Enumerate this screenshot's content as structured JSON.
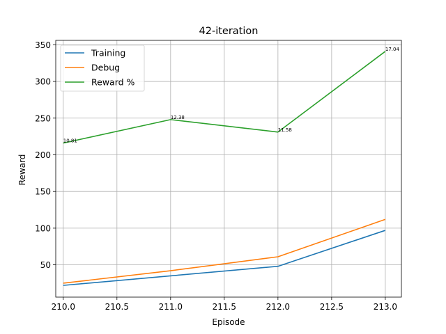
{
  "chart_data": {
    "type": "line",
    "title": "42-iteration",
    "xlabel": "Episode",
    "ylabel": "Reward",
    "x": [
      210.0,
      211.0,
      212.0,
      213.0
    ],
    "xlim": [
      209.93,
      213.15
    ],
    "ylim": [
      6,
      356
    ],
    "xticks": [
      210.0,
      210.5,
      211.0,
      211.5,
      212.0,
      212.5,
      213.0
    ],
    "xtick_labels": [
      "210.0",
      "210.5",
      "211.0",
      "211.5",
      "212.0",
      "212.5",
      "213.0"
    ],
    "yticks": [
      50,
      100,
      150,
      200,
      250,
      300,
      350
    ],
    "ytick_labels": [
      "50",
      "100",
      "150",
      "200",
      "250",
      "300",
      "350"
    ],
    "grid": true,
    "legend_position": "top-left",
    "series": [
      {
        "name": "Training",
        "color": "#1f77b4",
        "values": [
          22,
          35,
          48,
          97
        ]
      },
      {
        "name": "Debug",
        "color": "#ff7f0e",
        "values": [
          25,
          42,
          61,
          112
        ]
      },
      {
        "name": "Reward %",
        "color": "#2ca02c",
        "values": [
          216,
          248,
          231,
          341
        ],
        "point_labels": [
          "10.81",
          "12.38",
          "11.58",
          "17.04"
        ]
      }
    ]
  }
}
